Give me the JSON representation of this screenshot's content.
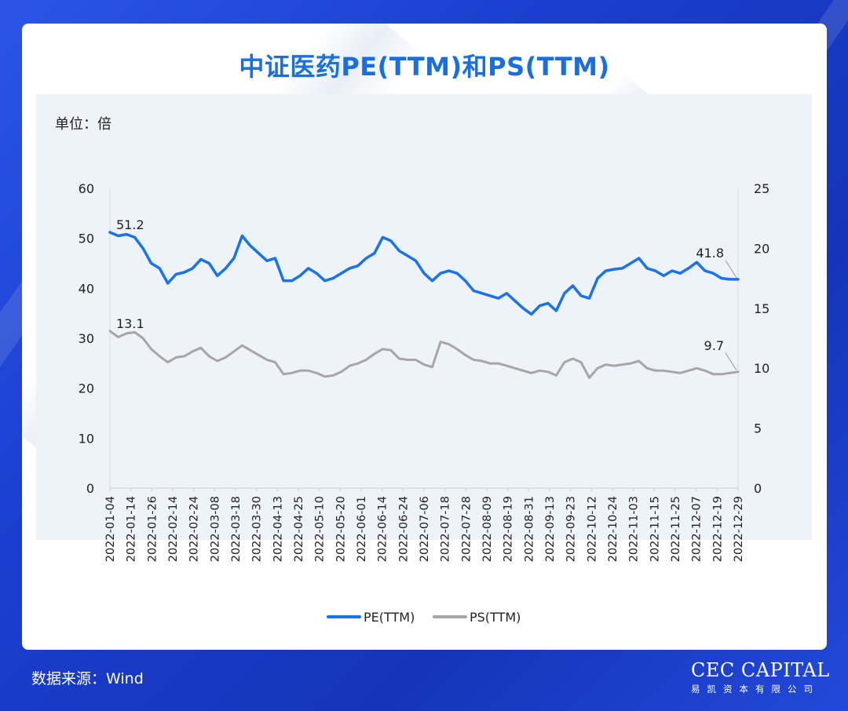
{
  "title": "中证医药PE(TTM)和PS(TTM)",
  "unit_label": "单位：倍",
  "source": "数据来源：Wind",
  "logo": {
    "name": "CEC CAPITAL",
    "subtitle": "易凯资本有限公司"
  },
  "colors": {
    "pe": "#1a73e8",
    "ps": "#a6a6a6",
    "title": "#1a6fdd",
    "background": "#1f45d6"
  },
  "chart_data": {
    "type": "line",
    "title": "中证医药PE(TTM)和PS(TTM)",
    "ylabel": "单位：倍",
    "ylim": [
      0,
      60
    ],
    "y2lim": [
      0,
      25
    ],
    "yticks": [
      "0",
      "10",
      "20",
      "30",
      "40",
      "50",
      "60"
    ],
    "y2ticks": [
      "0",
      "5",
      "10",
      "15",
      "20",
      "25"
    ],
    "xticks": [
      "2022-01-04",
      "2022-01-14",
      "2022-01-26",
      "2022-02-14",
      "2022-02-24",
      "2022-03-08",
      "2022-03-18",
      "2022-03-30",
      "2022-04-13",
      "2022-04-25",
      "2022-05-10",
      "2022-05-20",
      "2022-06-01",
      "2022-06-14",
      "2022-06-24",
      "2022-07-06",
      "2022-07-18",
      "2022-07-28",
      "2022-08-09",
      "2022-08-19",
      "2022-08-31",
      "2022-09-13",
      "2022-09-23",
      "2022-10-12",
      "2022-10-24",
      "2022-11-03",
      "2022-11-15",
      "2022-11-25",
      "2022-12-07",
      "2022-12-19",
      "2022-12-29"
    ],
    "grid": false,
    "legend_position": "bottom",
    "series": [
      {
        "name": "PE(TTM)",
        "axis": "left",
        "color": "#1a73e8",
        "values": [
          51.2,
          50.5,
          50.8,
          50.2,
          48.0,
          45.0,
          44.0,
          41.0,
          42.8,
          43.2,
          44.0,
          45.8,
          45.0,
          42.5,
          44.0,
          46.0,
          50.5,
          48.5,
          47.0,
          45.5,
          46.0,
          41.5,
          41.5,
          42.5,
          44.0,
          43.0,
          41.5,
          42.0,
          43.0,
          44.0,
          44.5,
          46.0,
          47.0,
          50.2,
          49.5,
          47.5,
          46.5,
          45.5,
          43.0,
          41.5,
          43.0,
          43.5,
          43.0,
          41.5,
          39.5,
          39.0,
          38.5,
          38.0,
          39.0,
          37.5,
          36.0,
          34.8,
          36.5,
          37.0,
          35.5,
          39.0,
          40.5,
          38.5,
          38.0,
          42.0,
          43.5,
          43.8,
          44.0,
          45.0,
          46.0,
          44.0,
          43.5,
          42.5,
          43.5,
          43.0,
          44.0,
          45.2,
          43.5,
          43.0,
          42.0,
          41.8,
          41.8
        ]
      },
      {
        "name": "PS(TTM)",
        "axis": "right",
        "color": "#a6a6a6",
        "values": [
          13.1,
          12.6,
          12.9,
          13.0,
          12.5,
          11.6,
          11.0,
          10.5,
          10.9,
          11.0,
          11.4,
          11.7,
          11.0,
          10.6,
          10.9,
          11.4,
          11.9,
          11.5,
          11.1,
          10.7,
          10.5,
          9.5,
          9.6,
          9.8,
          9.8,
          9.6,
          9.3,
          9.4,
          9.7,
          10.2,
          10.4,
          10.7,
          11.2,
          11.6,
          11.5,
          10.8,
          10.7,
          10.7,
          10.3,
          10.1,
          12.2,
          12.0,
          11.6,
          11.1,
          10.7,
          10.6,
          10.4,
          10.4,
          10.2,
          10.0,
          9.8,
          9.6,
          9.8,
          9.7,
          9.4,
          10.5,
          10.8,
          10.5,
          9.2,
          10.0,
          10.3,
          10.2,
          10.3,
          10.4,
          10.6,
          10.0,
          9.8,
          9.8,
          9.7,
          9.6,
          9.8,
          10.0,
          9.8,
          9.5,
          9.5,
          9.6,
          9.7
        ]
      }
    ],
    "annotations": [
      {
        "series": "PE(TTM)",
        "position": "first",
        "text": "51.2"
      },
      {
        "series": "PS(TTM)",
        "position": "first",
        "text": "13.1"
      },
      {
        "series": "PE(TTM)",
        "position": "last",
        "text": "41.8"
      },
      {
        "series": "PS(TTM)",
        "position": "last",
        "text": "9.7"
      }
    ]
  }
}
